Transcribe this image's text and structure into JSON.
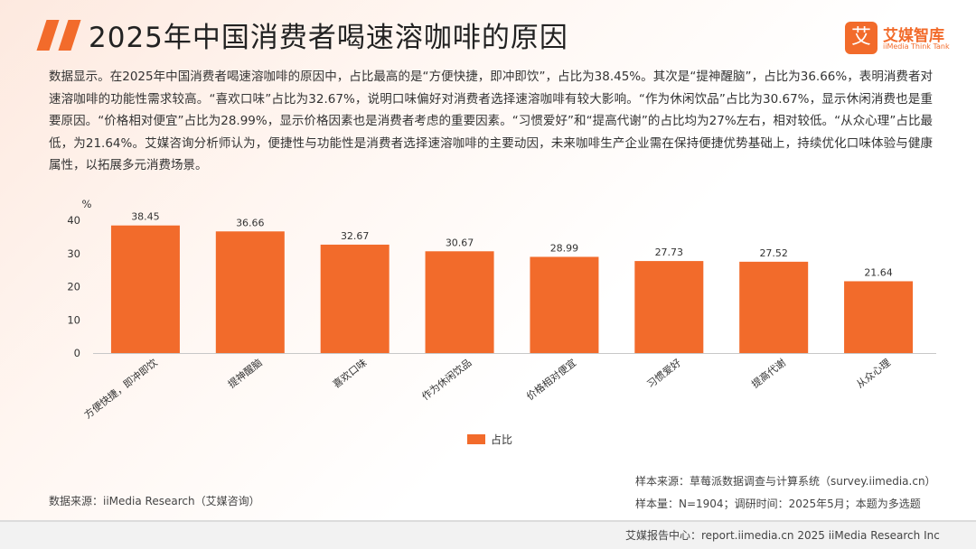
{
  "page": {
    "title": "2025年中国消费者喝速溶咖啡的原因",
    "summary": "数据显示。在2025年中国消费者喝速溶咖啡的原因中，占比最高的是“方便快捷，即冲即饮”，占比为38.45%。其次是“提神醒脑”，占比为36.66%，表明消费者对速溶咖啡的功能性需求较高。“喜欢口味”占比为32.67%，说明口味偏好对消费者选择速溶咖啡有较大影响。“作为休闲饮品”占比为30.67%，显示休闲消费也是重要原因。“价格相对便宜”占比为28.99%，显示价格因素也是消费者考虑的重要因素。“习惯爱好”和“提高代谢”的占比均为27%左右，相对较低。“从众心理”占比最低，为21.64%。艾媒咨询分析师认为，便捷性与功能性是消费者选择速溶咖啡的主要动因，未来咖啡生产企业需在保持便捷优势基础上，持续优化口味体验与健康属性，以拓展多元消费场景。"
  },
  "logo": {
    "mark": "艾",
    "name_cn": "艾媒智库",
    "name_en": "iiMedia Think Tank"
  },
  "chart_data": {
    "type": "bar",
    "unit_label": "%",
    "categories": [
      "方便快捷，即冲即饮",
      "提神醒脑",
      "喜欢口味",
      "作为休闲饮品",
      "价格相对便宜",
      "习惯爱好",
      "提高代谢",
      "从众心理"
    ],
    "series": [
      {
        "name": "占比",
        "values": [
          38.45,
          36.66,
          32.67,
          30.67,
          28.99,
          27.73,
          27.52,
          21.64
        ],
        "color": "#f26b2b"
      }
    ],
    "ylim": [
      0,
      40
    ],
    "yticks": [
      0,
      10,
      20,
      30,
      40
    ],
    "grid": false,
    "legend_position": "bottom"
  },
  "footer": {
    "source": "数据来源：iiMedia Research（艾媒咨询）",
    "sample_source": "样本来源：草莓派数据调查与计算系统（survey.iimedia.cn）",
    "sample_size": "样本量：N=1904；调研时间：2025年5月；本题为多选题",
    "report_center": "艾媒报告中心：report.iimedia.cn  2025 iiMedia Research Inc"
  },
  "colors": {
    "accent": "#f26b2b"
  }
}
